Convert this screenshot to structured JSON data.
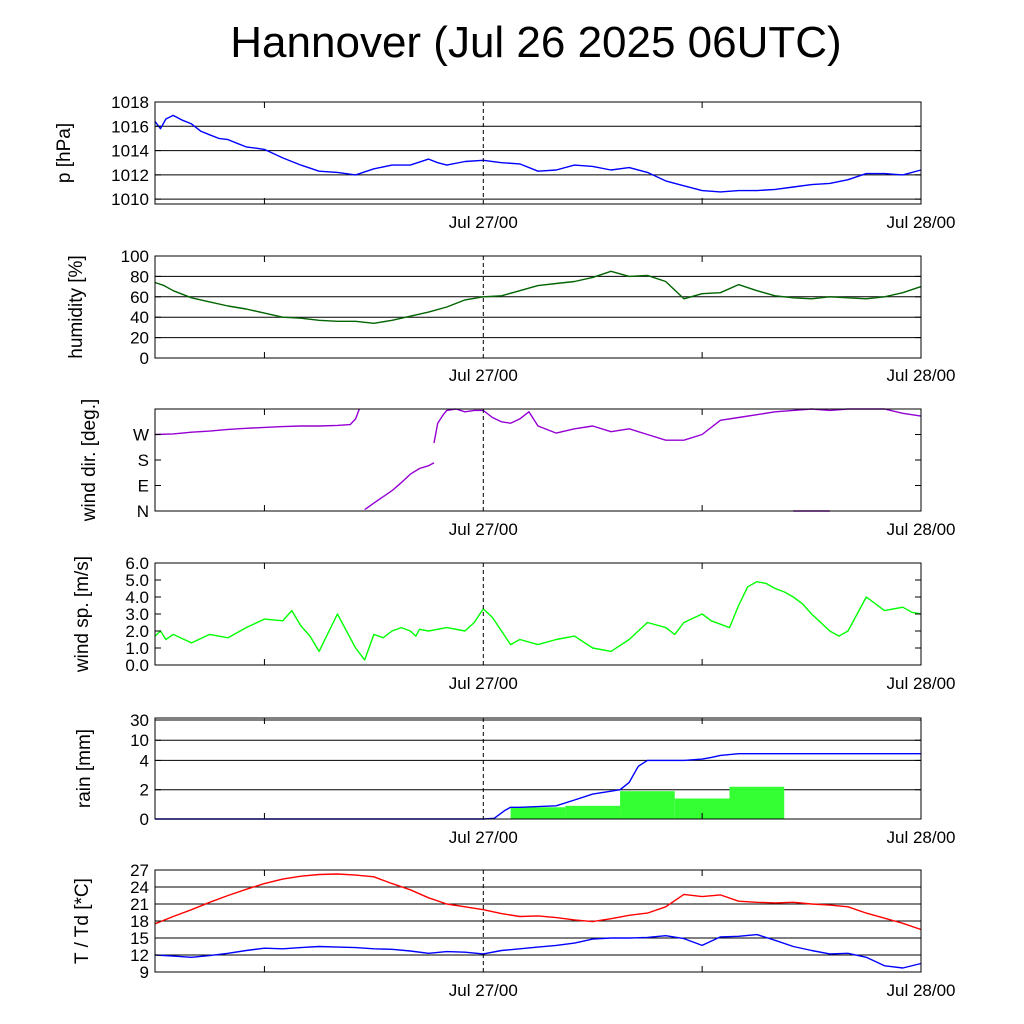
{
  "title": "Hannover (Jul 26 2025 06UTC)",
  "chart_data": [
    {
      "id": "pressure",
      "type": "line",
      "ylabel": "p [hPa]",
      "ylim": [
        1009.6,
        1018.0
      ],
      "yticks": [
        1010,
        1012,
        1014,
        1016,
        1018
      ],
      "ytick_labels": [
        "1010",
        "1012",
        "1014",
        "1016",
        "1018"
      ],
      "grid": true,
      "x_range_hours": [
        0,
        42
      ],
      "x_ticks_labels": [
        {
          "h": 18,
          "label": "Jul 27/00"
        },
        {
          "h": 42,
          "label": "Jul 28/00"
        }
      ],
      "series": [
        {
          "color": "#0000ff",
          "x": [
            0,
            0.3,
            0.6,
            1.0,
            1.5,
            2.0,
            2.5,
            3.0,
            3.5,
            4.0,
            4.5,
            5.0,
            5.5,
            6.0,
            7.0,
            8.0,
            9.0,
            10.0,
            11.0,
            12.0,
            13.0,
            14.0,
            15.0,
            15.5,
            16.0,
            17.0,
            18.0,
            19.0,
            20.0,
            21.0,
            22.0,
            23.0,
            24.0,
            25.0,
            26.0,
            27.0,
            28.0,
            29.0,
            30.0,
            31.0,
            32.0,
            33.0,
            34.0,
            35.0,
            36.0,
            37.0,
            38.0,
            39.0,
            40.0,
            41.0,
            42.0
          ],
          "values": [
            1016.4,
            1015.8,
            1016.6,
            1016.9,
            1016.5,
            1016.2,
            1015.6,
            1015.3,
            1015.0,
            1014.9,
            1014.6,
            1014.3,
            1014.2,
            1014.1,
            1013.4,
            1012.8,
            1012.3,
            1012.2,
            1012.0,
            1012.5,
            1012.8,
            1012.8,
            1013.3,
            1013.0,
            1012.8,
            1013.1,
            1013.2,
            1013.0,
            1012.9,
            1012.3,
            1012.4,
            1012.8,
            1012.7,
            1012.4,
            1012.6,
            1012.2,
            1011.5,
            1011.1,
            1010.7,
            1010.6,
            1010.7,
            1010.7,
            1010.8,
            1011.0,
            1011.2,
            1011.3,
            1011.6,
            1012.1,
            1012.1,
            1012.0,
            1012.4
          ]
        }
      ]
    },
    {
      "id": "humidity",
      "type": "line",
      "ylabel": "humidity [%]",
      "ylim": [
        0,
        100
      ],
      "yticks": [
        0,
        20,
        40,
        60,
        80,
        100
      ],
      "ytick_labels": [
        "0",
        "20",
        "40",
        "60",
        "80",
        "100"
      ],
      "grid": true,
      "x_range_hours": [
        0,
        42
      ],
      "x_ticks_labels": [
        {
          "h": 18,
          "label": "Jul 27/00"
        },
        {
          "h": 42,
          "label": "Jul 28/00"
        }
      ],
      "series": [
        {
          "color": "#006400",
          "x": [
            0,
            0.5,
            1.0,
            2.0,
            3.0,
            4.0,
            5.0,
            6.0,
            7.0,
            8.0,
            9.0,
            10.0,
            11.0,
            11.5,
            12.0,
            13.0,
            14.0,
            15.0,
            16.0,
            17.0,
            18.0,
            19.0,
            20.0,
            21.0,
            22.0,
            23.0,
            24.0,
            25.0,
            26.0,
            27.0,
            28.0,
            29.0,
            30.0,
            31.0,
            32.0,
            33.0,
            34.0,
            35.0,
            36.0,
            37.0,
            38.0,
            39.0,
            40.0,
            41.0,
            42.0
          ],
          "values": [
            74,
            71,
            66,
            59,
            55,
            51,
            48,
            44,
            40,
            39,
            37,
            36,
            36,
            35,
            34,
            37,
            41,
            45,
            50,
            57,
            60,
            61,
            66,
            71,
            73,
            75,
            79,
            85,
            80,
            81,
            75,
            58,
            63,
            64,
            72,
            66,
            61,
            59,
            58,
            60,
            59,
            58,
            60,
            64,
            70
          ]
        }
      ]
    },
    {
      "id": "wind_dir",
      "type": "scatter",
      "ylabel": "wind dir. [deg.]",
      "ylim": [
        0,
        360
      ],
      "yticks": [
        0,
        90,
        180,
        270
      ],
      "ytick_labels": [
        "N",
        "E",
        "S",
        "W"
      ],
      "grid": false,
      "x_range_hours": [
        0,
        42
      ],
      "x_ticks_labels": [
        {
          "h": 18,
          "label": "Jul 27/00"
        },
        {
          "h": 42,
          "label": "Jul 28/00"
        }
      ],
      "series": [
        {
          "color": "#9400d3",
          "segments": [
            {
              "x": [
                0,
                1,
                2,
                3,
                4,
                5,
                6,
                7,
                8,
                9,
                10,
                10.7,
                11.0,
                11.2
              ],
              "values": [
                270,
                272,
                278,
                282,
                288,
                292,
                295,
                298,
                300,
                300,
                302,
                305,
                325,
                360
              ]
            },
            {
              "x": [
                11.5,
                12.0,
                12.5,
                13.0,
                13.5,
                14.0,
                14.5,
                15.0,
                15.3
              ],
              "values": [
                5,
                28,
                50,
                72,
                100,
                130,
                150,
                160,
                170
              ]
            },
            {
              "x": [
                15.3,
                15.5,
                15.8,
                16.0,
                16.5,
                17.0,
                17.5,
                18.0,
                18.5,
                19.0,
                19.5,
                20.0,
                20.5,
                21.0,
                22.0,
                23.0,
                24.0,
                25.0,
                26.0,
                27.0,
                28.0,
                29.0,
                30.0,
                31.0,
                32.0,
                33.0,
                34.0,
                35.0,
                36.0,
                37.0,
                38.0,
                39.0,
                40.0,
                41.0,
                42.0
              ],
              "values": [
                240,
                310,
                340,
                355,
                360,
                350,
                355,
                355,
                330,
                315,
                310,
                325,
                350,
                300,
                275,
                290,
                300,
                280,
                290,
                270,
                250,
                250,
                270,
                320,
                330,
                340,
                350,
                355,
                360,
                355,
                360,
                360,
                360,
                345,
                335
              ]
            },
            {
              "x": [
                35.0,
                36.0,
                37.0
              ],
              "values": [
                0,
                0,
                0
              ]
            }
          ]
        }
      ]
    },
    {
      "id": "wind_speed",
      "type": "line",
      "ylabel": "wind sp. [m/s]",
      "ylim": [
        0,
        6.0
      ],
      "yticks": [
        0,
        1,
        2,
        3,
        4,
        5,
        6
      ],
      "ytick_labels": [
        "0.0",
        "1.0",
        "2.0",
        "3.0",
        "4.0",
        "5.0",
        "6.0"
      ],
      "grid": false,
      "x_range_hours": [
        0,
        42
      ],
      "x_ticks_labels": [
        {
          "h": 18,
          "label": "Jul 27/00"
        },
        {
          "h": 42,
          "label": "Jul 28/00"
        }
      ],
      "series": [
        {
          "color": "#00ff00",
          "x": [
            0,
            0.3,
            0.6,
            1.0,
            2.0,
            3.0,
            4.0,
            5.0,
            6.0,
            7.0,
            7.5,
            8.0,
            8.5,
            9.0,
            10.0,
            11.0,
            11.5,
            12.0,
            12.5,
            13.0,
            13.5,
            14.0,
            14.3,
            14.5,
            15.0,
            16.0,
            17.0,
            17.5,
            18.0,
            18.5,
            19.0,
            19.5,
            20.0,
            21.0,
            22.0,
            23.0,
            24.0,
            25.0,
            26.0,
            26.5,
            27.0,
            28.0,
            28.5,
            29.0,
            30.0,
            30.5,
            31.0,
            31.5,
            32.0,
            32.5,
            33.0,
            33.5,
            34.0,
            34.5,
            35.0,
            35.5,
            36.0,
            37.0,
            37.5,
            38.0,
            39.0,
            40.0,
            41.0,
            41.5,
            42.0
          ],
          "values": [
            1.7,
            2.0,
            1.5,
            1.8,
            1.3,
            1.8,
            1.6,
            2.2,
            2.7,
            2.6,
            3.2,
            2.3,
            1.7,
            0.8,
            3.0,
            1.0,
            0.3,
            1.8,
            1.6,
            2.0,
            2.2,
            2.0,
            1.7,
            2.1,
            2.0,
            2.2,
            2.0,
            2.5,
            3.3,
            2.8,
            2.0,
            1.2,
            1.5,
            1.2,
            1.5,
            1.7,
            1.0,
            0.8,
            1.5,
            2.0,
            2.5,
            2.2,
            1.8,
            2.5,
            3.0,
            2.6,
            2.4,
            2.2,
            3.5,
            4.6,
            4.9,
            4.8,
            4.5,
            4.3,
            4.0,
            3.6,
            3.0,
            2.0,
            1.7,
            2.0,
            4.0,
            3.2,
            3.4,
            3.1,
            3.0
          ]
        }
      ]
    },
    {
      "id": "rain",
      "type": "bar",
      "ylabel": "rain [mm]",
      "yticks": [
        0,
        2,
        4,
        10,
        30
      ],
      "ytick_labels": [
        "0",
        "2",
        "4",
        "10",
        "30"
      ],
      "grid": true,
      "x_range_hours": [
        0,
        42
      ],
      "x_ticks_labels": [
        {
          "h": 18,
          "label": "Jul 27/00"
        },
        {
          "h": 42,
          "label": "Jul 28/00"
        }
      ],
      "bars": {
        "color": "#33ff33",
        "x_start": [
          19.5,
          22.5,
          25.5,
          28.5,
          31.5
        ],
        "x_end": [
          22.5,
          25.5,
          28.5,
          31.5,
          34.5
        ],
        "values": [
          0.8,
          0.9,
          1.9,
          1.4,
          2.2
        ]
      },
      "series": [
        {
          "color": "#0000ff",
          "x": [
            0,
            18.0,
            18.6,
            19.2,
            19.5,
            20.0,
            21.0,
            22.0,
            23.0,
            24.0,
            25.0,
            25.5,
            26.0,
            26.5,
            27.0,
            27.5,
            28.0,
            29.0,
            30.0,
            30.5,
            31.0,
            32.0,
            33.0,
            34.0,
            35.0,
            36.0,
            42.0
          ],
          "values": [
            0,
            0,
            0.05,
            0.6,
            0.8,
            0.8,
            0.85,
            0.9,
            1.3,
            1.7,
            1.9,
            2.0,
            2.5,
            3.6,
            4.0,
            4.0,
            4.0,
            4.0,
            4.4,
            4.9,
            5.5,
            6.0,
            6.0,
            6.0,
            6.0,
            6.0,
            6.0
          ]
        }
      ]
    },
    {
      "id": "temperature",
      "type": "line",
      "ylabel": "T / Td [*C]",
      "ylim": [
        9,
        27
      ],
      "yticks": [
        9,
        12,
        15,
        18,
        21,
        24,
        27
      ],
      "ytick_labels": [
        "9",
        "12",
        "15",
        "18",
        "21",
        "24",
        "27"
      ],
      "grid": true,
      "x_range_hours": [
        0,
        42
      ],
      "x_ticks_labels": [
        {
          "h": 18,
          "label": "Jul 27/00"
        },
        {
          "h": 42,
          "label": "Jul 28/00"
        }
      ],
      "series": [
        {
          "color": "#ff0000",
          "x": [
            0,
            1,
            2,
            3,
            4,
            5,
            6,
            7,
            8,
            9,
            10,
            11,
            12,
            13,
            14,
            15,
            16,
            17,
            18,
            19,
            20,
            21,
            22,
            23,
            24,
            25,
            26,
            27,
            28,
            29,
            30,
            31,
            32,
            33,
            34,
            35,
            36,
            37,
            38,
            39,
            40,
            41,
            42
          ],
          "values": [
            17.5,
            18.8,
            20.0,
            21.3,
            22.5,
            23.6,
            24.6,
            25.4,
            25.9,
            26.2,
            26.3,
            26.1,
            25.8,
            24.6,
            23.5,
            22.1,
            21.0,
            20.5,
            20.0,
            19.3,
            18.8,
            18.9,
            18.6,
            18.2,
            17.9,
            18.4,
            19.0,
            19.4,
            20.5,
            22.7,
            22.3,
            22.6,
            21.5,
            21.3,
            21.2,
            21.3,
            21.0,
            20.8,
            20.5,
            19.4,
            18.5,
            17.6,
            16.5
          ]
        },
        {
          "color": "#0000ff",
          "x": [
            0,
            1,
            2,
            3,
            4,
            5,
            6,
            7,
            8,
            9,
            10,
            11,
            12,
            13,
            14,
            15,
            16,
            17,
            18,
            19,
            20,
            21,
            22,
            23,
            24,
            25,
            26,
            27,
            28,
            29,
            30,
            31,
            32,
            33,
            34,
            35,
            36,
            37,
            38,
            39,
            40,
            41,
            42
          ],
          "values": [
            12.0,
            11.8,
            11.6,
            11.9,
            12.3,
            12.8,
            13.2,
            13.1,
            13.3,
            13.5,
            13.4,
            13.3,
            13.1,
            13.0,
            12.7,
            12.3,
            12.6,
            12.5,
            12.2,
            12.8,
            13.1,
            13.4,
            13.7,
            14.1,
            14.8,
            15.0,
            15.0,
            15.1,
            15.4,
            14.9,
            13.7,
            15.2,
            15.3,
            15.6,
            14.6,
            13.5,
            12.8,
            12.2,
            12.3,
            11.6,
            10.1,
            9.7,
            10.5
          ]
        }
      ]
    }
  ]
}
